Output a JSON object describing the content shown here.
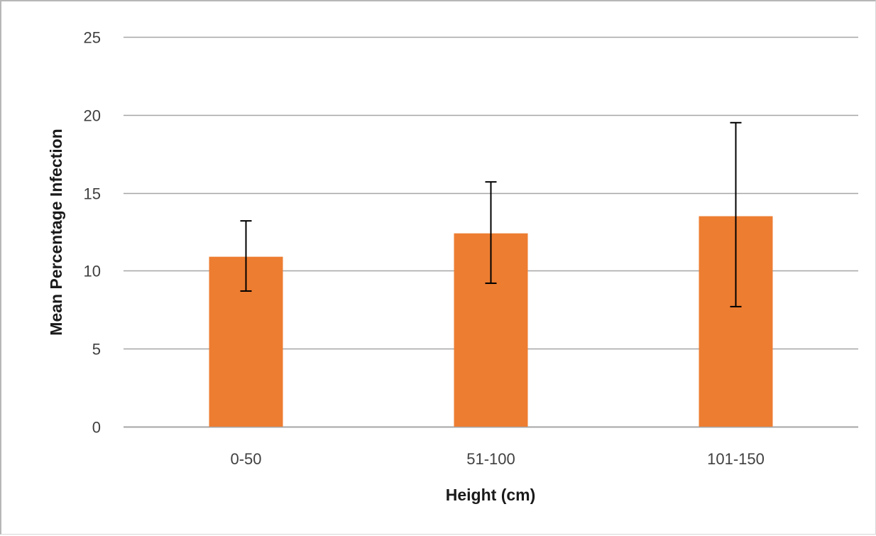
{
  "chart_data": {
    "type": "bar",
    "title": "",
    "xlabel": "Height (cm)",
    "ylabel": "Mean Percentage Infection",
    "categories": [
      "0-50",
      "51-100",
      "101-150"
    ],
    "series": [
      {
        "values": [
          10.9,
          12.4,
          13.5
        ],
        "error_low": [
          8.7,
          9.2,
          7.7
        ],
        "error_high": [
          13.2,
          15.7,
          19.5
        ]
      }
    ],
    "ylim": [
      0,
      25
    ],
    "yticks": [
      0,
      5,
      10,
      15,
      20,
      25
    ],
    "ytick_labels": [
      "0",
      "5",
      "10",
      "15",
      "20",
      "25"
    ],
    "grid": "horizontal",
    "legend": "none",
    "colors": {
      "bar": "#ED7D31",
      "gridline": "#a6a6a6",
      "error_bar": "#000000",
      "tick_text": "#404040",
      "axis_title": "#1a1a1a"
    }
  }
}
